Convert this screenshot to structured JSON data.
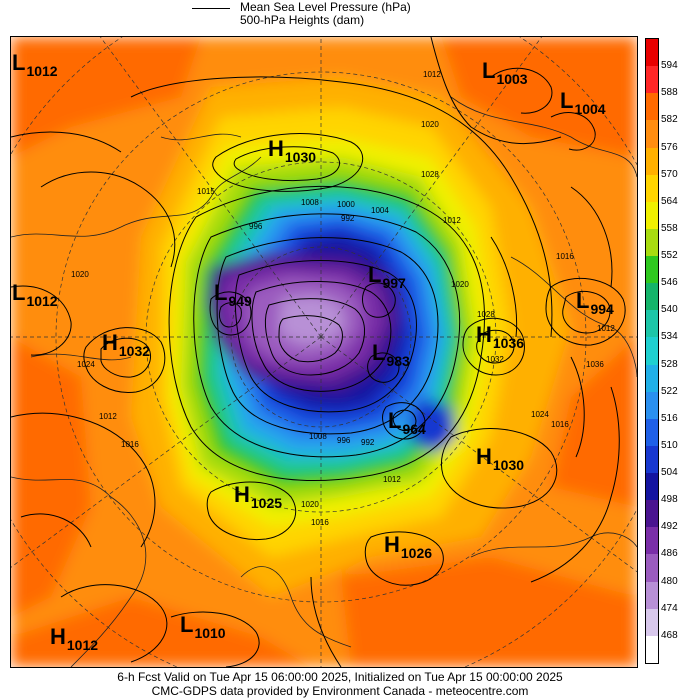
{
  "legend": {
    "line_label": "Mean Sea Level Pressure (hPa)",
    "fill_label": "500-hPa Heights (dam)"
  },
  "map": {
    "systems": [
      {
        "type": "L",
        "value": "1012",
        "name": "low-1012-nw"
      },
      {
        "type": "L",
        "value": "1003",
        "name": "low-1003-ne"
      },
      {
        "type": "L",
        "value": "1004",
        "name": "low-1004-ne"
      },
      {
        "type": "H",
        "value": "1030",
        "name": "high-1030-north"
      },
      {
        "type": "L",
        "value": "1012",
        "name": "low-1012-west"
      },
      {
        "type": "H",
        "value": "1032",
        "name": "high-1032-west"
      },
      {
        "type": "L",
        "value": "949",
        "name": "low-949-center"
      },
      {
        "type": "L",
        "value": "997",
        "name": "low-997-center"
      },
      {
        "type": "L",
        "value": "983",
        "name": "low-983-center"
      },
      {
        "type": "L",
        "value": "994",
        "name": "low-994-east"
      },
      {
        "type": "H",
        "value": "1036",
        "name": "high-1036-east"
      },
      {
        "type": "L",
        "value": "964",
        "name": "low-964-center"
      },
      {
        "type": "H",
        "value": "1030",
        "name": "high-1030-east"
      },
      {
        "type": "H",
        "value": "1025",
        "name": "high-1025-south"
      },
      {
        "type": "H",
        "value": "1026",
        "name": "high-1026-south"
      },
      {
        "type": "H",
        "value": "1012",
        "name": "high-1012-sw"
      },
      {
        "type": "L",
        "value": "1010",
        "name": "low-1010-south"
      }
    ],
    "contour_labels": [
      "1012",
      "1020",
      "1028",
      "1015",
      "1008",
      "1000",
      "996",
      "992",
      "1004",
      "1012",
      "1020",
      "1028",
      "1032",
      "1016",
      "1024",
      "1036",
      "1012",
      "1016",
      "1020",
      "1024",
      "1012",
      "1008",
      "996",
      "992",
      "1012",
      "1020",
      "1016",
      "1016"
    ]
  },
  "colorbar": {
    "levels": [
      "594",
      "588",
      "582",
      "576",
      "570",
      "564",
      "558",
      "552",
      "546",
      "540",
      "534",
      "528",
      "522",
      "516",
      "510",
      "504",
      "498",
      "492",
      "486",
      "480",
      "474",
      "468"
    ],
    "colors": [
      "#e80000",
      "#ff2626",
      "#ff6a00",
      "#ff8d10",
      "#ffb000",
      "#ffd400",
      "#f0f000",
      "#a8dc10",
      "#2ec81e",
      "#14b46a",
      "#1cc6a8",
      "#1ed0d0",
      "#20b0e8",
      "#2a90f0",
      "#1f60e8",
      "#1838d0",
      "#1414a0",
      "#4a1490",
      "#7a2ea8",
      "#9b5cbf",
      "#b890d6",
      "#d8c8ec",
      "#ffffff"
    ]
  },
  "footer": {
    "line1": "6-h Fcst Valid on Tue Apr 15 06:00:00 2025, Initialized on Tue Apr 15 00:00:00 2025",
    "line2": "CMC-GDPS data provided by Environment Canada - meteocentre.com"
  }
}
